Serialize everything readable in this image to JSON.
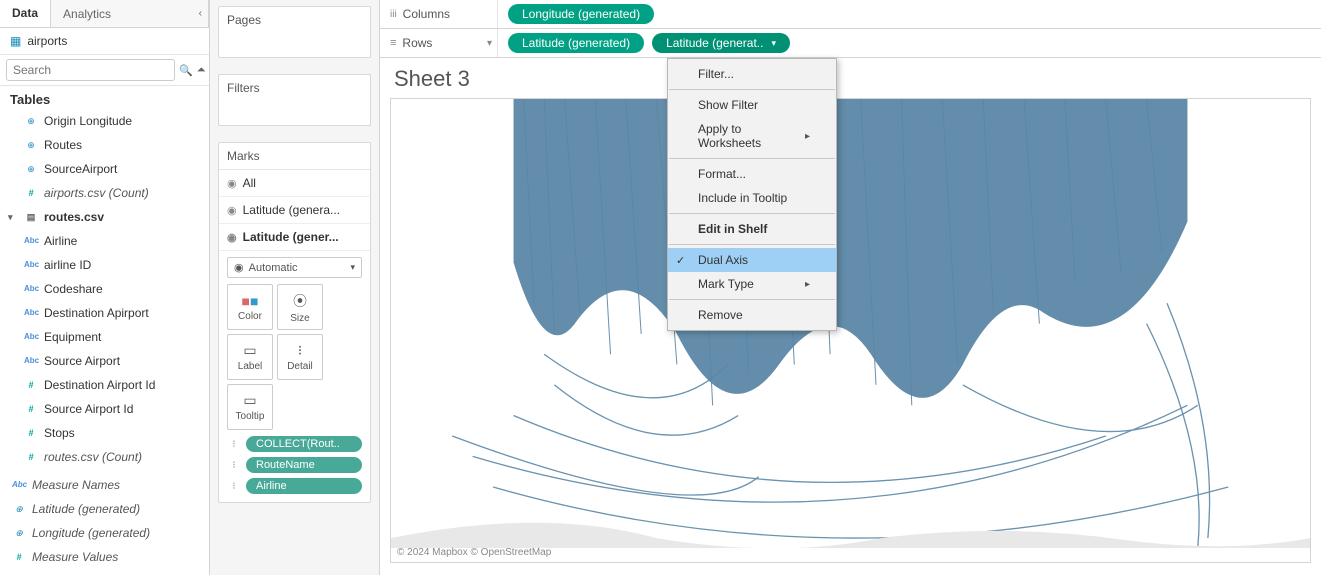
{
  "tabs": {
    "data": "Data",
    "analytics": "Analytics"
  },
  "datasource": "airports",
  "search_placeholder": "Search",
  "tables_heading": "Tables",
  "fields_top": [
    {
      "icon": "globe",
      "label": "Origin Longitude"
    },
    {
      "icon": "globe",
      "label": "Routes"
    },
    {
      "icon": "globe",
      "label": "SourceAirport"
    },
    {
      "icon": "numsign",
      "label": "airports.csv (Count)",
      "italic": true
    }
  ],
  "group_name": "routes.csv",
  "fields_routes": [
    {
      "icon": "abc",
      "label": "Airline"
    },
    {
      "icon": "abc",
      "label": "airline ID"
    },
    {
      "icon": "abc",
      "label": "Codeshare"
    },
    {
      "icon": "abc",
      "label": "Destination Apirport"
    },
    {
      "icon": "abc",
      "label": "Equipment"
    },
    {
      "icon": "abc",
      "label": "Source Airport"
    },
    {
      "icon": "numsign",
      "label": "Destination Airport Id"
    },
    {
      "icon": "numsign",
      "label": "Source Airport Id"
    },
    {
      "icon": "numsign",
      "label": "Stops"
    },
    {
      "icon": "numsign",
      "label": "routes.csv (Count)",
      "italic": true
    }
  ],
  "fields_bottom": [
    {
      "icon": "abc",
      "label": "Measure Names",
      "italic": true
    },
    {
      "icon": "globe",
      "label": "Latitude (generated)",
      "italic": true
    },
    {
      "icon": "globe",
      "label": "Longitude (generated)",
      "italic": true
    },
    {
      "icon": "numsign",
      "label": "Measure Values",
      "italic": true
    }
  ],
  "cards": {
    "pages": "Pages",
    "filters": "Filters",
    "marks": "Marks"
  },
  "mark_layers": {
    "all": "All",
    "l1": "Latitude (genera...",
    "l2": "Latitude (gener..."
  },
  "mark_type": "Automatic",
  "mark_buttons": {
    "color": "Color",
    "size": "Size",
    "label": "Label",
    "detail": "Detail",
    "tooltip": "Tooltip"
  },
  "mark_pills": [
    "COLLECT(Rout..",
    "RouteName",
    "Airline"
  ],
  "shelves": {
    "columns": "Columns",
    "rows": "Rows",
    "col_pills": [
      "Longitude (generated)"
    ],
    "row_pills": [
      "Latitude (generated)",
      "Latitude (generat.."
    ]
  },
  "sheet_title": "Sheet 3",
  "attribution": "© 2024 Mapbox © OpenStreetMap",
  "context_menu": {
    "filter": "Filter...",
    "show_filter": "Show Filter",
    "apply": "Apply to Worksheets",
    "format": "Format...",
    "include_tooltip": "Include in Tooltip",
    "edit_shelf": "Edit in Shelf",
    "dual_axis": "Dual Axis",
    "mark_type": "Mark Type",
    "remove": "Remove"
  },
  "colors": {
    "pill_green": "#00a185",
    "pill_teal": "#49a999",
    "route_stroke": "#5b87a6",
    "map_land": "#e8e8e8"
  }
}
